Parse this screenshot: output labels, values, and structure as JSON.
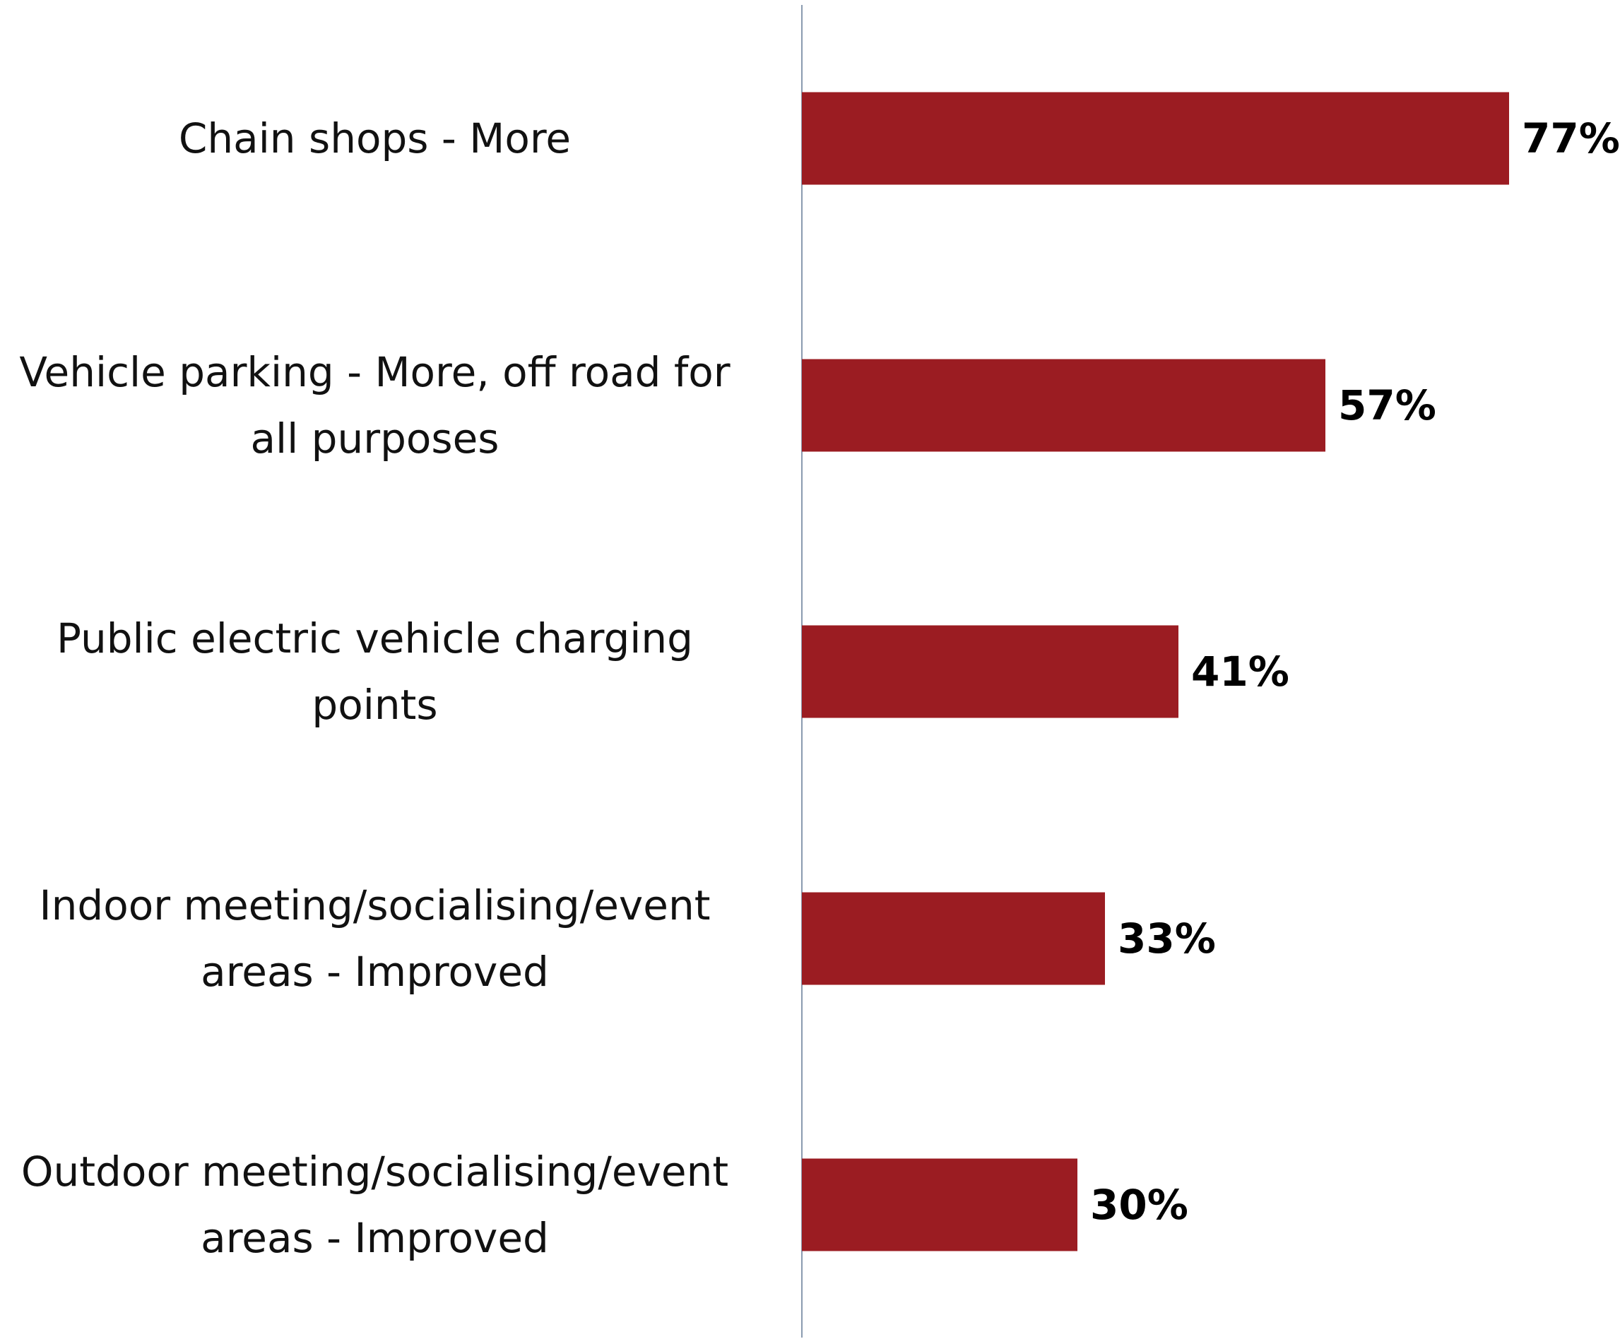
{
  "chart_data": {
    "type": "bar",
    "orientation": "horizontal",
    "categories": [
      "Chain shops - More",
      "Vehicle parking - More, off road for all purposes",
      "Public electric vehicle charging points",
      "Indoor meeting/socialising/event areas - Improved",
      "Outdoor meeting/socialising/event areas - Improved"
    ],
    "values": [
      77,
      57,
      41,
      33,
      30
    ],
    "value_labels": [
      "77%",
      "57%",
      "41%",
      "33%",
      "30%"
    ],
    "color": "#9b1c22"
  }
}
